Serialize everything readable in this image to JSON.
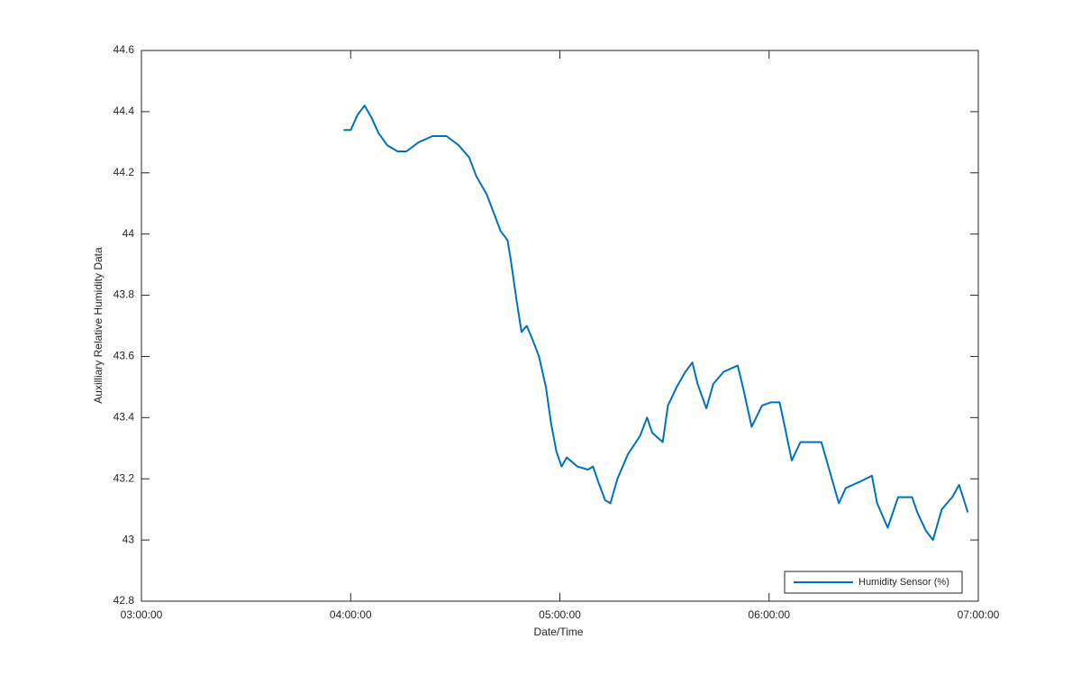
{
  "chart_data": {
    "type": "line",
    "xlabel": "Date/Time",
    "ylabel": "Auxilliary Relative Humidity Data",
    "xlim": [
      "03:00:00",
      "07:00:00"
    ],
    "xticks": [
      "03:00:00",
      "04:00:00",
      "05:00:00",
      "06:00:00",
      "07:00:00"
    ],
    "ylim": [
      42.8,
      44.6
    ],
    "yticks": [
      42.8,
      43,
      43.2,
      43.4,
      43.6,
      43.8,
      44,
      44.2,
      44.4,
      44.6
    ],
    "grid": false,
    "legend": "lower right",
    "x": [
      "03:58:00",
      "04:00:00",
      "04:02:00",
      "04:04:00",
      "04:06:00",
      "04:08:00",
      "04:10:30",
      "04:13:30",
      "04:16:00",
      "04:19:30",
      "04:23:30",
      "04:27:30",
      "04:31:00",
      "04:34:00",
      "04:36:00",
      "04:39:00",
      "04:41:00",
      "04:43:00",
      "04:45:00",
      "04:46:00",
      "04:47:30",
      "04:49:00",
      "04:50:30",
      "04:52:00",
      "04:54:00",
      "04:56:00",
      "04:57:30",
      "04:59:00",
      "05:00:30",
      "05:02:00",
      "05:05:00",
      "05:08:00",
      "05:09:30",
      "05:11:00",
      "05:13:00",
      "05:14:30",
      "05:16:30",
      "05:19:30",
      "05:23:00",
      "05:25:00",
      "05:26:30",
      "05:29:30",
      "05:31:00",
      "05:33:30",
      "05:36:00",
      "05:38:00",
      "05:39:30",
      "05:42:00",
      "05:44:00",
      "05:47:00",
      "05:51:00",
      "05:52:30",
      "05:55:00",
      "05:58:00",
      "06:00:30",
      "06:03:00",
      "06:04:30",
      "06:06:30",
      "06:09:00",
      "06:12:00",
      "06:15:00",
      "06:17:30",
      "06:20:00",
      "06:22:00",
      "06:26:00",
      "06:29:30",
      "06:31:00",
      "06:34:00",
      "06:37:00",
      "06:41:00",
      "06:42:30",
      "06:45:00",
      "06:47:00",
      "06:49:30",
      "06:52:30",
      "06:54:30",
      "06:57:00"
    ],
    "series": [
      {
        "name": "Humidity Sensor (%)",
        "color": "#0072bd",
        "values": [
          44.34,
          44.34,
          44.39,
          44.42,
          44.38,
          44.33,
          44.29,
          44.27,
          44.27,
          44.3,
          44.32,
          44.32,
          44.29,
          44.25,
          44.19,
          44.13,
          44.07,
          44.01,
          43.98,
          43.91,
          43.79,
          43.68,
          43.7,
          43.66,
          43.6,
          43.5,
          43.38,
          43.29,
          43.24,
          43.27,
          43.24,
          43.23,
          43.24,
          43.19,
          43.13,
          43.12,
          43.2,
          43.28,
          43.34,
          43.4,
          43.35,
          43.32,
          43.44,
          43.5,
          43.55,
          43.58,
          43.51,
          43.43,
          43.51,
          43.55,
          43.57,
          43.5,
          43.37,
          43.44,
          43.45,
          43.45,
          43.37,
          43.26,
          43.32,
          43.32,
          43.32,
          43.22,
          43.12,
          43.17,
          43.19,
          43.21,
          43.12,
          43.04,
          43.14,
          43.14,
          43.09,
          43.03,
          43.0,
          43.1,
          43.14,
          43.18,
          43.09
        ]
      }
    ]
  }
}
